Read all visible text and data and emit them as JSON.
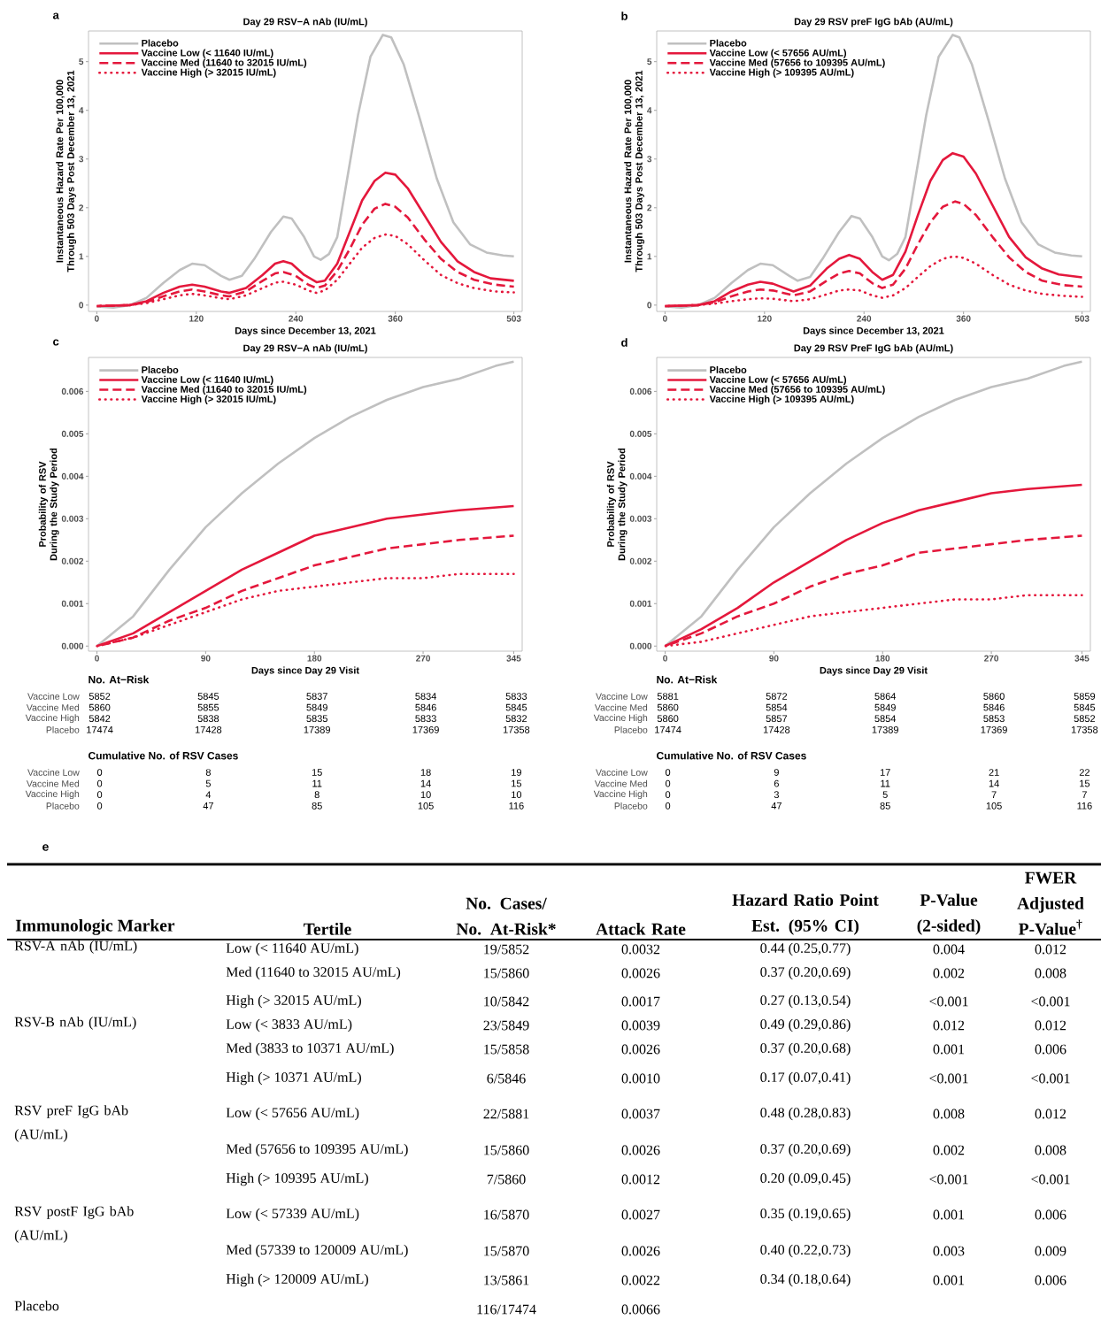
{
  "chart_data": [
    {
      "type": "line",
      "title": "Day 29 RSV−A nAb (IU/mL)",
      "xlabel": "Days since December 13, 2021",
      "ylabel": "Instantaneous Hazard Rate Per 100,000 Through 503 Days Post December 13, 2021",
      "xlim": [
        -10,
        513
      ],
      "ylim": [
        -0.13,
        5.63
      ],
      "xticks": [
        0,
        120,
        240,
        360,
        503
      ],
      "yticks": [
        0,
        1,
        2,
        3,
        4,
        5
      ],
      "legend": "top left",
      "annotations": [
        "a"
      ],
      "series": [
        {
          "name": "Placebo",
          "color": "#c0c0c0",
          "line_style": "solid",
          "x": [
            0,
            20,
            40,
            60,
            80,
            100,
            115,
            130,
            150,
            160,
            175,
            190,
            210,
            225,
            235,
            250,
            262,
            270,
            280,
            290,
            300,
            315,
            330,
            345,
            355,
            370,
            390,
            410,
            430,
            450,
            470,
            490,
            503
          ],
          "values": [
            -0.03,
            -0.05,
            0,
            0.15,
            0.45,
            0.72,
            0.85,
            0.82,
            0.6,
            0.52,
            0.6,
            0.95,
            1.5,
            1.82,
            1.78,
            1.4,
            1.0,
            0.93,
            1.05,
            1.4,
            2.4,
            3.9,
            5.1,
            5.55,
            5.5,
            4.95,
            3.8,
            2.6,
            1.7,
            1.25,
            1.08,
            1.02,
            1.0
          ]
        },
        {
          "name": "Vaccine Low (< 11640 IU/mL)",
          "color": "#e4183c",
          "line_style": "solid",
          "x": [
            0,
            40,
            60,
            80,
            100,
            115,
            130,
            150,
            160,
            180,
            200,
            215,
            225,
            235,
            250,
            265,
            275,
            290,
            305,
            320,
            335,
            348,
            360,
            375,
            395,
            415,
            435,
            455,
            475,
            503
          ],
          "values": [
            -0.02,
            0,
            0.08,
            0.25,
            0.38,
            0.42,
            0.38,
            0.28,
            0.25,
            0.35,
            0.62,
            0.85,
            0.9,
            0.85,
            0.62,
            0.47,
            0.5,
            0.85,
            1.5,
            2.15,
            2.55,
            2.72,
            2.68,
            2.4,
            1.85,
            1.3,
            0.9,
            0.68,
            0.55,
            0.5
          ]
        },
        {
          "name": "Vaccine Med (11640 to 32015 IU/mL)",
          "color": "#e4183c",
          "line_style": "dashed",
          "x": [
            0,
            40,
            60,
            80,
            100,
            115,
            130,
            150,
            160,
            180,
            200,
            215,
            225,
            240,
            255,
            265,
            275,
            290,
            305,
            320,
            335,
            348,
            360,
            375,
            395,
            415,
            435,
            455,
            480,
            503
          ],
          "values": [
            -0.02,
            0,
            0.06,
            0.18,
            0.28,
            0.32,
            0.28,
            0.2,
            0.18,
            0.28,
            0.5,
            0.65,
            0.68,
            0.6,
            0.42,
            0.35,
            0.4,
            0.7,
            1.15,
            1.65,
            1.98,
            2.08,
            2.02,
            1.8,
            1.35,
            0.95,
            0.68,
            0.52,
            0.42,
            0.38
          ]
        },
        {
          "name": "Vaccine High (> 32015 IU/mL)",
          "color": "#e4183c",
          "line_style": "dotted",
          "x": [
            0,
            40,
            60,
            80,
            100,
            115,
            130,
            150,
            160,
            180,
            200,
            215,
            225,
            240,
            255,
            265,
            275,
            290,
            305,
            320,
            335,
            348,
            360,
            375,
            395,
            415,
            435,
            455,
            480,
            503
          ],
          "values": [
            -0.02,
            0,
            0.04,
            0.12,
            0.2,
            0.23,
            0.2,
            0.14,
            0.12,
            0.2,
            0.35,
            0.46,
            0.48,
            0.42,
            0.3,
            0.25,
            0.3,
            0.52,
            0.85,
            1.18,
            1.38,
            1.45,
            1.42,
            1.25,
            0.92,
            0.62,
            0.45,
            0.35,
            0.28,
            0.26
          ]
        }
      ]
    },
    {
      "type": "line",
      "title": "Day 29 RSV preF IgG bAb (AU/mL)",
      "xlabel": "Days since December 13, 2021",
      "ylabel": "Instantaneous Hazard Rate Per 100,000 Through 503 Days Post December 13, 2021",
      "xlim": [
        -10,
        513
      ],
      "ylim": [
        -0.13,
        5.63
      ],
      "xticks": [
        0,
        120,
        240,
        360,
        503
      ],
      "yticks": [
        0,
        1,
        2,
        3,
        4,
        5
      ],
      "legend": "top left",
      "annotations": [
        "b"
      ],
      "series": [
        {
          "name": "Placebo",
          "color": "#c0c0c0",
          "line_style": "solid",
          "x": [
            0,
            20,
            40,
            60,
            80,
            100,
            115,
            130,
            150,
            160,
            175,
            190,
            210,
            225,
            235,
            250,
            262,
            270,
            280,
            290,
            300,
            315,
            330,
            347,
            355,
            370,
            390,
            410,
            430,
            450,
            470,
            490,
            503
          ],
          "values": [
            -0.03,
            -0.05,
            0,
            0.15,
            0.45,
            0.72,
            0.85,
            0.82,
            0.6,
            0.5,
            0.58,
            0.95,
            1.5,
            1.83,
            1.78,
            1.4,
            1.0,
            0.92,
            1.05,
            1.4,
            2.4,
            3.9,
            5.1,
            5.55,
            5.5,
            4.95,
            3.8,
            2.6,
            1.7,
            1.25,
            1.08,
            1.02,
            1.0
          ]
        },
        {
          "name": "Vaccine Low (< 57656 AU/mL)",
          "color": "#e4183c",
          "line_style": "solid",
          "x": [
            0,
            40,
            60,
            80,
            100,
            115,
            130,
            155,
            175,
            195,
            210,
            222,
            235,
            250,
            262,
            275,
            290,
            305,
            320,
            335,
            347,
            360,
            375,
            395,
            415,
            435,
            455,
            475,
            503
          ],
          "values": [
            -0.02,
            0,
            0.08,
            0.28,
            0.42,
            0.48,
            0.44,
            0.28,
            0.4,
            0.75,
            0.95,
            1.03,
            0.95,
            0.68,
            0.52,
            0.62,
            1.1,
            1.85,
            2.55,
            2.98,
            3.12,
            3.05,
            2.7,
            2.05,
            1.4,
            0.98,
            0.75,
            0.63,
            0.57
          ]
        },
        {
          "name": "Vaccine Med (57656 to 109395 AU/mL)",
          "color": "#e4183c",
          "line_style": "dashed",
          "x": [
            0,
            40,
            60,
            80,
            100,
            115,
            130,
            155,
            175,
            195,
            210,
            222,
            235,
            250,
            262,
            275,
            290,
            305,
            320,
            335,
            350,
            360,
            375,
            395,
            415,
            435,
            455,
            480,
            503
          ],
          "values": [
            -0.02,
            0,
            0.06,
            0.18,
            0.28,
            0.32,
            0.3,
            0.2,
            0.28,
            0.5,
            0.65,
            0.7,
            0.65,
            0.45,
            0.35,
            0.42,
            0.75,
            1.25,
            1.7,
            2.02,
            2.13,
            2.08,
            1.85,
            1.4,
            0.98,
            0.68,
            0.5,
            0.41,
            0.38
          ]
        },
        {
          "name": "Vaccine High (> 109395 AU/mL)",
          "color": "#e4183c",
          "line_style": "dotted",
          "x": [
            0,
            40,
            60,
            80,
            100,
            115,
            130,
            155,
            175,
            195,
            210,
            222,
            235,
            250,
            262,
            275,
            290,
            305,
            320,
            335,
            348,
            360,
            375,
            395,
            415,
            435,
            455,
            480,
            503
          ],
          "values": [
            -0.02,
            0,
            0.03,
            0.08,
            0.12,
            0.14,
            0.13,
            0.08,
            0.12,
            0.22,
            0.3,
            0.32,
            0.3,
            0.2,
            0.15,
            0.2,
            0.35,
            0.58,
            0.8,
            0.95,
            1.0,
            0.97,
            0.85,
            0.62,
            0.42,
            0.3,
            0.23,
            0.19,
            0.17
          ]
        }
      ]
    },
    {
      "type": "line",
      "title": "Day 29 RSV−A nAb (IU/mL)",
      "xlabel": "Days since Day 29 Visit",
      "ylabel": "Probability of RSV During the Study Period",
      "xlim": [
        -7,
        352
      ],
      "ylim": [
        -0.00012,
        0.0068
      ],
      "xticks": [
        0,
        90,
        180,
        270,
        345
      ],
      "yticks": [
        {
          "value": 0,
          "label": "0.000"
        },
        {
          "value": 0.001,
          "label": "0.001"
        },
        {
          "value": 0.002,
          "label": "0.002"
        },
        {
          "value": 0.003,
          "label": "0.003"
        },
        {
          "value": 0.004,
          "label": "0.004"
        },
        {
          "value": 0.005,
          "label": "0.005"
        },
        {
          "value": 0.006,
          "label": "0.006"
        }
      ],
      "legend": "top left",
      "annotations": [
        "c",
        "No. At−Risk",
        "Vaccine Low",
        "5852",
        "5845",
        "5837",
        "5834",
        "5833",
        "Vaccine Med",
        "5860",
        "5855",
        "5849",
        "5846",
        "5845",
        "Vaccine High",
        "5842",
        "5838",
        "5835",
        "5833",
        "5832",
        "Placebo",
        "17474",
        "17428",
        "17389",
        "17369",
        "17358",
        "Cumulative No. of RSV Cases",
        "Vaccine Low",
        "0",
        "8",
        "15",
        "18",
        "19",
        "Vaccine Med",
        "0",
        "5",
        "11",
        "14",
        "15",
        "Vaccine High",
        "0",
        "4",
        "8",
        "10",
        "10",
        "Placebo",
        "0",
        "47",
        "85",
        "105",
        "116"
      ],
      "series": [
        {
          "name": "Placebo",
          "color": "#c0c0c0",
          "line_style": "solid",
          "x": [
            0,
            30,
            60,
            90,
            120,
            150,
            180,
            210,
            240,
            270,
            300,
            330,
            345
          ],
          "values": [
            0,
            0.0007,
            0.0018,
            0.0028,
            0.0036,
            0.0043,
            0.0049,
            0.0054,
            0.0058,
            0.0061,
            0.0063,
            0.0066,
            0.0067
          ]
        },
        {
          "name": "Vaccine Low (< 11640 IU/mL)",
          "color": "#e4183c",
          "line_style": "solid",
          "x": [
            0,
            30,
            60,
            90,
            120,
            150,
            180,
            210,
            240,
            270,
            300,
            345
          ],
          "values": [
            0,
            0.0003,
            0.0008,
            0.0013,
            0.0018,
            0.0022,
            0.0026,
            0.0028,
            0.003,
            0.0031,
            0.0032,
            0.0033
          ]
        },
        {
          "name": "Vaccine Med (11640 to 32015 IU/mL)",
          "color": "#e4183c",
          "line_style": "dashed",
          "x": [
            0,
            30,
            60,
            90,
            120,
            150,
            180,
            210,
            240,
            270,
            300,
            345
          ],
          "values": [
            0,
            0.0002,
            0.0006,
            0.0009,
            0.0013,
            0.0016,
            0.0019,
            0.0021,
            0.0023,
            0.0024,
            0.0025,
            0.0026
          ]
        },
        {
          "name": "Vaccine High (> 32015 IU/mL)",
          "color": "#e4183c",
          "line_style": "dotted",
          "x": [
            0,
            30,
            60,
            90,
            120,
            150,
            180,
            210,
            240,
            270,
            300,
            345
          ],
          "values": [
            0,
            0.0002,
            0.0005,
            0.0008,
            0.0011,
            0.0013,
            0.0014,
            0.0015,
            0.0016,
            0.0016,
            0.0017,
            0.0017
          ]
        }
      ]
    },
    {
      "type": "line",
      "title": "Day 29 RSV PreF IgG bAb (AU/mL)",
      "xlabel": "Days since Day 29 Visit",
      "ylabel": "Probability of RSV During the Study Period",
      "xlim": [
        -7,
        352
      ],
      "ylim": [
        -0.00012,
        0.0068
      ],
      "xticks": [
        0,
        90,
        180,
        270,
        345
      ],
      "yticks": [
        {
          "value": 0,
          "label": "0.000"
        },
        {
          "value": 0.001,
          "label": "0.001"
        },
        {
          "value": 0.002,
          "label": "0.002"
        },
        {
          "value": 0.003,
          "label": "0.003"
        },
        {
          "value": 0.004,
          "label": "0.004"
        },
        {
          "value": 0.005,
          "label": "0.005"
        },
        {
          "value": 0.006,
          "label": "0.006"
        }
      ],
      "legend": "top left",
      "annotations": [
        "d",
        "No. At−Risk",
        "Vaccine Low",
        "5881",
        "5872",
        "5864",
        "5860",
        "5859",
        "Vaccine Med",
        "5860",
        "5854",
        "5849",
        "5846",
        "5845",
        "Vaccine High",
        "5860",
        "5857",
        "5854",
        "5853",
        "5852",
        "Placebo",
        "17474",
        "17428",
        "17389",
        "17369",
        "17358",
        "Cumulative No. of RSV Cases",
        "Vaccine Low",
        "0",
        "9",
        "17",
        "21",
        "22",
        "Vaccine Med",
        "0",
        "6",
        "11",
        "14",
        "15",
        "Vaccine High",
        "0",
        "3",
        "5",
        "7",
        "7",
        "Placebo",
        "0",
        "47",
        "85",
        "105",
        "116"
      ],
      "series": [
        {
          "name": "Placebo",
          "color": "#c0c0c0",
          "line_style": "solid",
          "x": [
            0,
            30,
            60,
            90,
            120,
            150,
            180,
            210,
            240,
            270,
            300,
            330,
            345
          ],
          "values": [
            0,
            0.0007,
            0.0018,
            0.0028,
            0.0036,
            0.0043,
            0.0049,
            0.0054,
            0.0058,
            0.0061,
            0.0063,
            0.0066,
            0.0067
          ]
        },
        {
          "name": "Vaccine Low (< 57656 AU/mL)",
          "color": "#e4183c",
          "line_style": "solid",
          "x": [
            0,
            30,
            60,
            90,
            120,
            150,
            180,
            210,
            240,
            270,
            300,
            345
          ],
          "values": [
            0,
            0.0004,
            0.0009,
            0.0015,
            0.002,
            0.0025,
            0.0029,
            0.0032,
            0.0034,
            0.0036,
            0.0037,
            0.0038
          ]
        },
        {
          "name": "Vaccine Med (57656 to 109395 AU/mL)",
          "color": "#e4183c",
          "line_style": "dashed",
          "x": [
            0,
            30,
            60,
            90,
            120,
            150,
            180,
            210,
            240,
            270,
            300,
            345
          ],
          "values": [
            0,
            0.0003,
            0.0007,
            0.001,
            0.0014,
            0.0017,
            0.0019,
            0.0022,
            0.0023,
            0.0024,
            0.0025,
            0.0026
          ]
        },
        {
          "name": "Vaccine High (> 109395 AU/mL)",
          "color": "#e4183c",
          "line_style": "dotted",
          "x": [
            0,
            30,
            60,
            90,
            120,
            150,
            180,
            210,
            240,
            270,
            300,
            345
          ],
          "values": [
            0,
            0.0001,
            0.0003,
            0.0005,
            0.0007,
            0.0008,
            0.0009,
            0.001,
            0.0011,
            0.0011,
            0.0012,
            0.0012
          ]
        }
      ]
    },
    {
      "type": "other",
      "annotations": [
        "e",
        "Immunologic Marker",
        "Tertile",
        "No. Cases/ No. At-Risk*",
        "Attack Rate",
        "Hazard Ratio Point Est. (95% CI)",
        "P-Value (2-sided)",
        "FWER Adjusted P-Value$^{†}$",
        "RSV-A nAb (IU/mL)",
        "Low (< 11640 AU/mL)",
        "19/5852",
        "0.0032",
        "0.44 (0.25,0.77)",
        "0.004",
        "0.012",
        null,
        "Med (11640 to 32015 AU/mL)",
        "15/5860",
        "0.0026",
        "0.37 (0.20,0.69)",
        "0.002",
        "0.008",
        null,
        "High (> 32015 AU/mL)",
        "10/5842",
        "0.0017",
        "0.27 (0.13,0.54)",
        "<0.001",
        "<0.001",
        "RSV-B nAb (IU/mL)",
        "Low (< 3833 AU/mL)",
        "23/5849",
        "0.0039",
        "0.49 (0.29,0.86)",
        "0.012",
        "0.012",
        null,
        "Med (3833 to 10371 AU/mL)",
        "15/5858",
        "0.0026",
        "0.37 (0.20,0.68)",
        "0.001",
        "0.006",
        null,
        "High (> 10371 AU/mL)",
        "6/5846",
        "0.0010",
        "0.17 (0.07,0.41)",
        "<0.001",
        "<0.001",
        "RSV preF IgG bAb (AU/mL)",
        "Low (< 57656 AU/mL)",
        "22/5881",
        "0.0037",
        "0.48 (0.28,0.83)",
        "0.008",
        "0.012",
        null,
        "Med (57656 to 109395 AU/mL)",
        "15/5860",
        "0.0026",
        "0.37 (0.20,0.69)",
        "0.002",
        "0.008",
        null,
        "High (> 109395 AU/mL)",
        "7/5860",
        "0.0012",
        "0.20 (0.09,0.45)",
        "<0.001",
        "<0.001",
        "RSV postF IgG bAb (AU/mL)",
        "Low (< 57339 AU/mL)",
        "16/5870",
        "0.0027",
        "0.35 (0.19,0.65)",
        "0.001",
        "0.006",
        null,
        "Med (57339 to 120009 AU/mL)",
        "15/5870",
        "0.0026",
        "0.40 (0.22,0.73)",
        "0.003",
        "0.009",
        null,
        "High (> 120009 AU/mL)",
        "13/5861",
        "0.0022",
        "0.34 (0.18,0.64)",
        "0.001",
        "0.006",
        "Placebo",
        null,
        "116/17474",
        "0.0066",
        null,
        null,
        null
      ]
    }
  ]
}
